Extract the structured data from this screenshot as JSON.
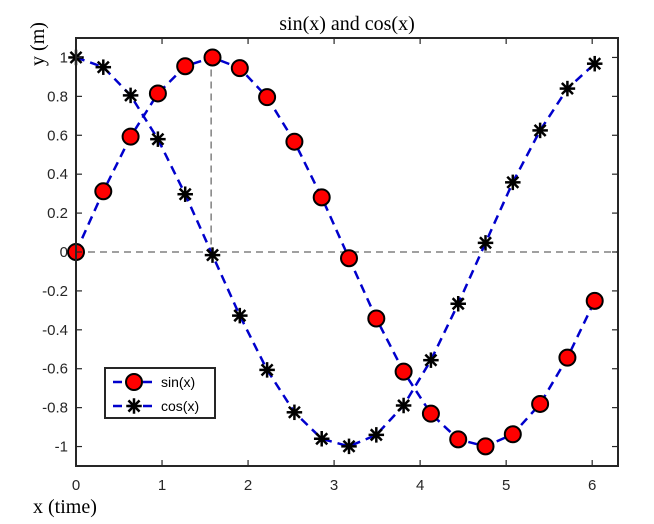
{
  "chart_data": {
    "type": "line",
    "title": "sin(x) and cos(x)",
    "xlabel": "x (time)",
    "ylabel": "y (m)",
    "xlim": [
      0,
      6.3
    ],
    "ylim": [
      -1.1,
      1.1
    ],
    "xticks": [
      0,
      1,
      2,
      3,
      4,
      5,
      6
    ],
    "yticks": [
      1,
      0.8,
      0.6,
      0.4,
      0.2,
      0,
      -0.2,
      -0.4,
      -0.6,
      -0.8,
      -1
    ],
    "x": [
      0,
      0.3173,
      0.6347,
      0.952,
      1.2693,
      1.5867,
      1.904,
      2.2213,
      2.5387,
      2.856,
      3.1733,
      3.4907,
      3.808,
      4.1253,
      4.4427,
      4.76,
      5.0773,
      5.3947,
      5.712,
      6.0293
    ],
    "series": [
      {
        "name": "sin(x)",
        "color": "#0000cc",
        "marker": "circle",
        "marker_fill": "#ff0000",
        "values": [
          0,
          0.312,
          0.593,
          0.815,
          0.955,
          1.0,
          0.945,
          0.796,
          0.567,
          0.281,
          -0.032,
          -0.342,
          -0.615,
          -0.831,
          -0.963,
          -0.999,
          -0.937,
          -0.781,
          -0.543,
          -0.251
        ]
      },
      {
        "name": "cos(x)",
        "color": "#0000cc",
        "marker": "asterisk",
        "marker_fill": "#000000",
        "values": [
          1.0,
          0.95,
          0.805,
          0.58,
          0.297,
          -0.016,
          -0.327,
          -0.606,
          -0.824,
          -0.96,
          -0.999,
          -0.94,
          -0.789,
          -0.556,
          -0.266,
          0.047,
          0.358,
          0.625,
          0.84,
          0.968
        ]
      }
    ],
    "reference_lines": {
      "horizontal_y": 0,
      "vertical_x": 1.5708,
      "vertical_top_y": 1.0,
      "color": "#808080"
    },
    "legend": {
      "placement": "bottom-left"
    },
    "grid": false
  }
}
